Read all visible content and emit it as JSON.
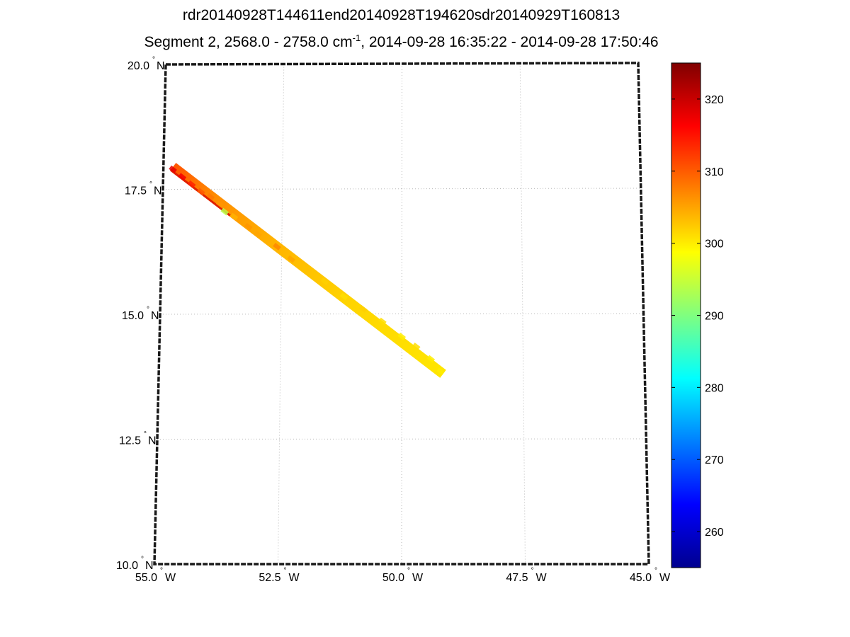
{
  "title_line1": "rdr20140928T144611end20140928T194620sdr20140929T160813",
  "title_line2": {
    "prefix": "Segment 2, 2568.0 - 2758.0 cm",
    "superscript": "-1",
    "suffix": ", 2014-09-28 16:35:22 - 2014-09-28 17:50:46"
  },
  "chart_data": {
    "type": "scatter",
    "title": "rdr20140928T144611end20140928T194620sdr20140929T160813 / Segment 2, 2568.0 - 2758.0 cm-1, 2014-09-28 16:35:22 - 2014-09-28 17:50:46",
    "projection": "map",
    "xlim": [
      -55.0,
      -45.0
    ],
    "ylim": [
      10.0,
      20.0
    ],
    "grid": true,
    "x_ticks": [
      {
        "value": -55.0,
        "label": "55.0",
        "hemisphere": "W"
      },
      {
        "value": -52.5,
        "label": "52.5",
        "hemisphere": "W"
      },
      {
        "value": -50.0,
        "label": "50.0",
        "hemisphere": "W"
      },
      {
        "value": -47.5,
        "label": "47.5",
        "hemisphere": "W"
      },
      {
        "value": -45.0,
        "label": "45.0",
        "hemisphere": "W"
      }
    ],
    "y_ticks": [
      {
        "value": 10.0,
        "label": "10.0",
        "hemisphere": "N"
      },
      {
        "value": 12.5,
        "label": "12.5",
        "hemisphere": "N"
      },
      {
        "value": 15.0,
        "label": "15.0",
        "hemisphere": "N"
      },
      {
        "value": 17.5,
        "label": "17.5",
        "hemisphere": "N"
      },
      {
        "value": 20.0,
        "label": "20.0",
        "hemisphere": "N"
      }
    ],
    "colorbar": {
      "colormap": "jet",
      "range": [
        255,
        325
      ],
      "ticks": [
        260,
        270,
        280,
        290,
        300,
        310,
        320
      ]
    },
    "swath": {
      "start": {
        "lon": -54.8,
        "lat": 17.95
      },
      "end": {
        "lon": -49.15,
        "lat": 13.8
      }
    },
    "points": [
      {
        "lon": -54.8,
        "lat": 17.9,
        "value": 318
      },
      {
        "lon": -54.6,
        "lat": 17.75,
        "value": 317
      },
      {
        "lon": -54.4,
        "lat": 17.6,
        "value": 314
      },
      {
        "lon": -54.2,
        "lat": 17.45,
        "value": 310
      },
      {
        "lon": -54.0,
        "lat": 17.35,
        "value": 308
      },
      {
        "lon": -53.8,
        "lat": 17.2,
        "value": 306
      },
      {
        "lon": -53.7,
        "lat": 17.05,
        "value": 294
      },
      {
        "lon": -53.5,
        "lat": 16.95,
        "value": 304
      },
      {
        "lon": -53.2,
        "lat": 16.75,
        "value": 306
      },
      {
        "lon": -53.0,
        "lat": 16.6,
        "value": 305
      },
      {
        "lon": -52.6,
        "lat": 16.35,
        "value": 307
      },
      {
        "lon": -52.3,
        "lat": 16.1,
        "value": 305
      },
      {
        "lon": -52.0,
        "lat": 15.9,
        "value": 303
      },
      {
        "lon": -51.6,
        "lat": 15.65,
        "value": 302
      },
      {
        "lon": -51.2,
        "lat": 15.35,
        "value": 301
      },
      {
        "lon": -50.8,
        "lat": 15.1,
        "value": 302
      },
      {
        "lon": -50.4,
        "lat": 14.85,
        "value": 301
      },
      {
        "lon": -50.0,
        "lat": 14.55,
        "value": 300
      },
      {
        "lon": -49.7,
        "lat": 14.35,
        "value": 301
      },
      {
        "lon": -49.4,
        "lat": 14.1,
        "value": 300
      },
      {
        "lon": -49.2,
        "lat": 13.85,
        "value": 300
      }
    ]
  }
}
